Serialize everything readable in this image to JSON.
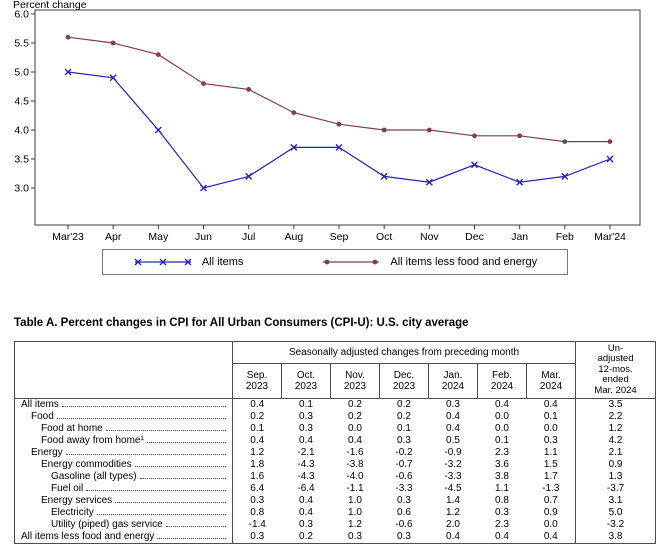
{
  "chart_data": {
    "type": "line",
    "title": "Percent change",
    "x": [
      "Mar'23",
      "Apr",
      "May",
      "Jun",
      "Jul",
      "Aug",
      "Sep",
      "Oct",
      "Nov",
      "Dec",
      "Jan",
      "Feb",
      "Mar'24"
    ],
    "series": [
      {
        "name": "All items",
        "marker": "x",
        "color": "#2323bb",
        "values": [
          5.0,
          4.9,
          4.0,
          3.0,
          3.2,
          3.7,
          3.7,
          3.2,
          3.1,
          3.4,
          3.1,
          3.2,
          3.5
        ]
      },
      {
        "name": "All items less food and energy",
        "marker": "circle",
        "color": "#833c52",
        "values": [
          5.6,
          5.5,
          5.3,
          4.8,
          4.7,
          4.3,
          4.1,
          4.0,
          4.0,
          3.9,
          3.9,
          3.8,
          3.8
        ]
      }
    ],
    "yticks": [
      3.0,
      3.5,
      4.0,
      4.5,
      5.0,
      5.5,
      6.0
    ],
    "ylim": [
      2.35,
      6.0
    ],
    "grid": false,
    "legend_position": "bottom-center-boxed"
  },
  "table": {
    "title": "Table A. Percent changes in CPI for All Urban Consumers (CPI-U): U.S. city average",
    "group_header": "Seasonally adjusted changes from preceding month",
    "unadjusted_header": "Un-\nadjusted\n12-mos.\nended\nMar. 2024",
    "columns": [
      "Sep.\n2023",
      "Oct.\n2023",
      "Nov.\n2023",
      "Dec.\n2023",
      "Jan.\n2024",
      "Feb.\n2024",
      "Mar.\n2024"
    ],
    "rows": [
      {
        "label": "All items",
        "indent": 0,
        "values": [
          "0.4",
          "0.1",
          "0.2",
          "0.2",
          "0.3",
          "0.4",
          "0.4"
        ],
        "unadjusted": "3.5"
      },
      {
        "label": "Food",
        "indent": 1,
        "values": [
          "0.2",
          "0.3",
          "0.2",
          "0.2",
          "0.4",
          "0.0",
          "0.1"
        ],
        "unadjusted": "2.2"
      },
      {
        "label": "Food at home",
        "indent": 2,
        "values": [
          "0.1",
          "0.3",
          "0.0",
          "0.1",
          "0.4",
          "0.0",
          "0.0"
        ],
        "unadjusted": "1.2"
      },
      {
        "label": "Food away from home¹",
        "indent": 2,
        "values": [
          "0.4",
          "0.4",
          "0.4",
          "0.3",
          "0.5",
          "0.1",
          "0.3"
        ],
        "unadjusted": "4.2"
      },
      {
        "label": "Energy",
        "indent": 1,
        "values": [
          "1.2",
          "-2.1",
          "-1.6",
          "-0.2",
          "-0.9",
          "2.3",
          "1.1"
        ],
        "unadjusted": "2.1"
      },
      {
        "label": "Energy commodities",
        "indent": 2,
        "values": [
          "1.8",
          "-4.3",
          "-3.8",
          "-0.7",
          "-3.2",
          "3.6",
          "1.5"
        ],
        "unadjusted": "0.9"
      },
      {
        "label": "Gasoline (all types)",
        "indent": 3,
        "values": [
          "1.6",
          "-4.3",
          "-4.0",
          "-0.6",
          "-3.3",
          "3.8",
          "1.7"
        ],
        "unadjusted": "1.3"
      },
      {
        "label": "Fuel oil",
        "indent": 3,
        "values": [
          "6.4",
          "-6.4",
          "-1.1",
          "-3.3",
          "-4.5",
          "1.1",
          "-1.3"
        ],
        "unadjusted": "-3.7"
      },
      {
        "label": "Energy services",
        "indent": 2,
        "values": [
          "0.3",
          "0.4",
          "1.0",
          "0.3",
          "1.4",
          "0.8",
          "0.7"
        ],
        "unadjusted": "3.1"
      },
      {
        "label": "Electricity",
        "indent": 3,
        "values": [
          "0.8",
          "0.4",
          "1.0",
          "0.6",
          "1.2",
          "0.3",
          "0.9"
        ],
        "unadjusted": "5.0"
      },
      {
        "label": "Utility (piped) gas service",
        "indent": 3,
        "values": [
          "-1.4",
          "0.3",
          "1.2",
          "-0.6",
          "2.0",
          "2.3",
          "0.0"
        ],
        "unadjusted": "-3.2"
      },
      {
        "label": "All items less food and energy",
        "indent": 0,
        "values": [
          "0.3",
          "0.2",
          "0.3",
          "0.3",
          "0.4",
          "0.4",
          "0.4"
        ],
        "unadjusted": "3.8"
      }
    ]
  }
}
